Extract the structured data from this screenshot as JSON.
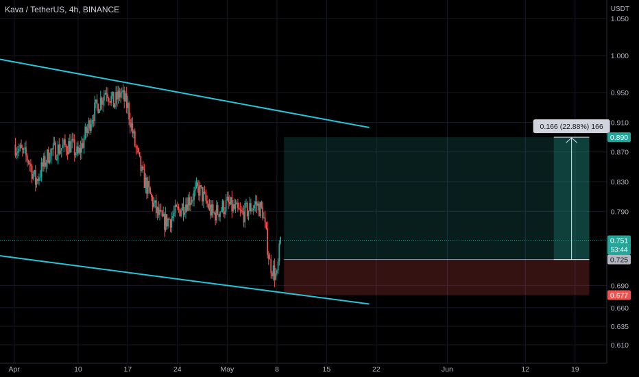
{
  "header": {
    "symbol_title": "Kava / TetherUS, 4h, BINANCE",
    "axis_unit": "USDT"
  },
  "chart_data": {
    "type": "candlestick",
    "symbol": "Kava / TetherUS",
    "interval": "4h",
    "exchange": "BINANCE",
    "currency": "USDT",
    "ylim": [
      0.585,
      1.075
    ],
    "y_ticks": [
      "1.050",
      "1.000",
      "0.950",
      "0.910",
      "0.870",
      "0.830",
      "0.790",
      "0.690",
      "0.660",
      "0.635",
      "0.610"
    ],
    "x_ticks": [
      "Apr",
      "10",
      "17",
      "24",
      "May",
      "8",
      "15",
      "22",
      "Jun",
      "12",
      "19"
    ],
    "x_tick_dates": [
      "2023-04-01",
      "2023-04-10",
      "2023-04-17",
      "2023-04-24",
      "2023-05-01",
      "2023-05-08",
      "2023-05-15",
      "2023-05-22",
      "2023-06-01",
      "2023-06-12",
      "2023-06-19"
    ],
    "grid": true,
    "price_path": [
      {
        "date": "2023-04-01",
        "price": 0.88
      },
      {
        "date": "2023-04-03",
        "price": 0.86
      },
      {
        "date": "2023-04-04",
        "price": 0.83
      },
      {
        "date": "2023-04-06",
        "price": 0.87
      },
      {
        "date": "2023-04-09",
        "price": 0.88
      },
      {
        "date": "2023-04-10",
        "price": 0.865
      },
      {
        "date": "2023-04-12",
        "price": 0.92
      },
      {
        "date": "2023-04-14",
        "price": 0.955
      },
      {
        "date": "2023-04-15",
        "price": 0.935
      },
      {
        "date": "2023-04-16",
        "price": 0.95
      },
      {
        "date": "2023-04-17",
        "price": 0.93
      },
      {
        "date": "2023-04-18",
        "price": 0.88
      },
      {
        "date": "2023-04-19",
        "price": 0.84
      },
      {
        "date": "2023-04-21",
        "price": 0.79
      },
      {
        "date": "2023-04-22",
        "price": 0.775
      },
      {
        "date": "2023-04-23",
        "price": 0.78
      },
      {
        "date": "2023-04-25",
        "price": 0.8
      },
      {
        "date": "2023-04-27",
        "price": 0.82
      },
      {
        "date": "2023-04-29",
        "price": 0.785
      },
      {
        "date": "2023-05-01",
        "price": 0.8
      },
      {
        "date": "2023-05-03",
        "price": 0.785
      },
      {
        "date": "2023-05-05",
        "price": 0.8
      },
      {
        "date": "2023-05-06",
        "price": 0.79
      },
      {
        "date": "2023-05-07",
        "price": 0.72
      },
      {
        "date": "2023-05-08",
        "price": 0.7
      },
      {
        "date": "2023-05-08T12",
        "price": 0.751
      }
    ],
    "trend_lines": [
      {
        "name": "upper-channel",
        "color": "#26c6da",
        "points": [
          {
            "date": "2023-03-30",
            "price": 0.995
          },
          {
            "date": "2023-05-21",
            "price": 0.903
          }
        ]
      },
      {
        "name": "lower-channel",
        "color": "#26c6da",
        "points": [
          {
            "date": "2023-03-30",
            "price": 0.73
          },
          {
            "date": "2023-05-21",
            "price": 0.665
          }
        ]
      }
    ],
    "long_position": {
      "start_date": "2023-05-09",
      "end_date": "2023-06-21",
      "entry": 0.725,
      "target": 0.89,
      "stop": 0.677,
      "profit_color": "#26a69a",
      "loss_color": "#ef5350"
    },
    "measure": {
      "label": "0.166 (22.88%) 166",
      "start_date": "2023-06-16",
      "end_date": "2023-06-21",
      "from": 0.725,
      "to": 0.89
    },
    "price_labels": [
      {
        "text": "0.890",
        "value": 0.89,
        "bg": "#26a69a",
        "fg": "#ffffff"
      },
      {
        "text": "0.751",
        "sub": "53:44",
        "value": 0.751,
        "bg": "#26a69a",
        "fg": "#ffffff"
      },
      {
        "text": "0.725",
        "value": 0.725,
        "bg": "#b2b5be",
        "fg": "#131722"
      },
      {
        "text": "0.677",
        "value": 0.677,
        "bg": "#ef5350",
        "fg": "#ffffff"
      }
    ],
    "last_price": 0.751,
    "colors": {
      "up": "#26a69a",
      "down": "#ef5350",
      "grid": "#161a25",
      "axis_text": "#b2b5be",
      "trend": "#26c6da"
    }
  }
}
